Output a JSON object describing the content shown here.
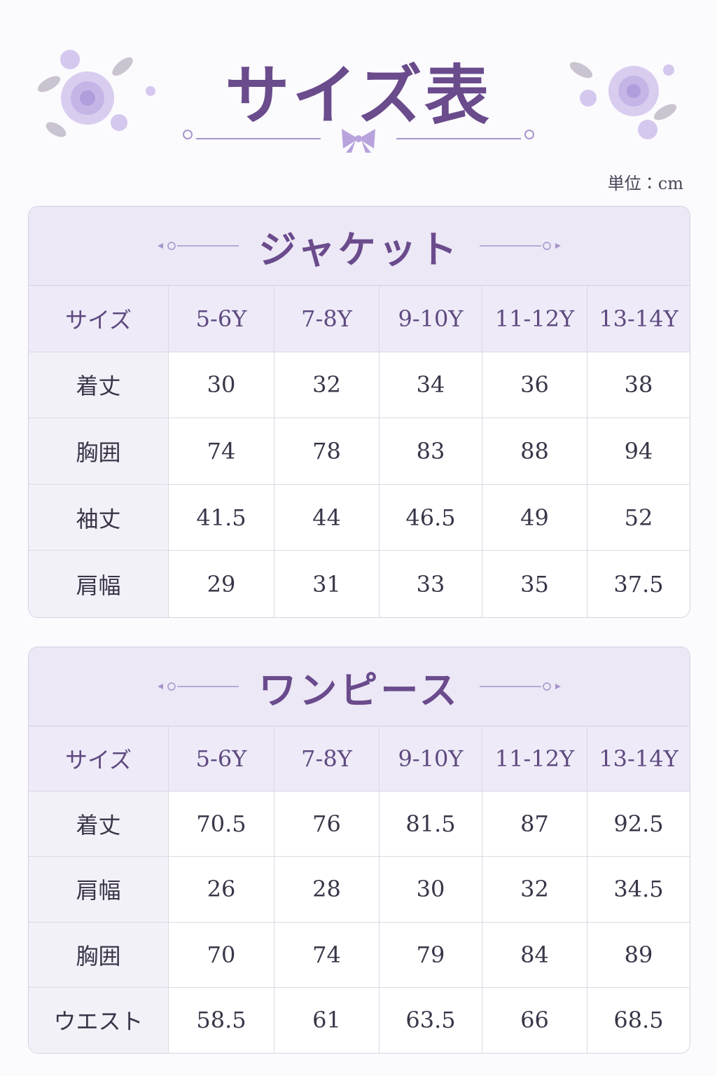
{
  "header": {
    "title": "サイズ表",
    "unit": "単位：cm"
  },
  "tables": [
    {
      "title": "ジャケット",
      "columns": [
        "サイズ",
        "5-6Y",
        "7-8Y",
        "9-10Y",
        "11-12Y",
        "13-14Y"
      ],
      "rows": [
        [
          "着丈",
          30,
          32,
          34,
          36,
          38
        ],
        [
          "胸囲",
          74,
          78,
          83,
          88,
          94
        ],
        [
          "袖丈",
          41.5,
          44,
          46.5,
          49,
          52
        ],
        [
          "肩幅",
          29,
          31,
          33,
          35,
          37.5
        ]
      ]
    },
    {
      "title": "ワンピース",
      "columns": [
        "サイズ",
        "5-6Y",
        "7-8Y",
        "9-10Y",
        "11-12Y",
        "13-14Y"
      ],
      "rows": [
        [
          "着丈",
          70.5,
          76,
          81.5,
          87,
          92.5
        ],
        [
          "肩幅",
          26,
          28,
          30,
          32,
          34.5
        ],
        [
          "胸囲",
          70,
          74,
          79,
          84,
          89
        ],
        [
          "ウエスト",
          58.5,
          61,
          63.5,
          66,
          68.5
        ]
      ]
    }
  ]
}
